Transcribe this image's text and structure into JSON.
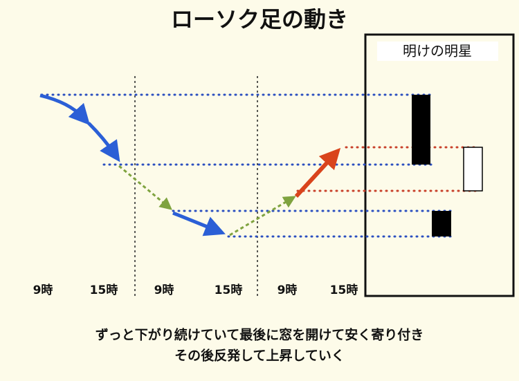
{
  "header": {
    "title": "ローソク足の動き"
  },
  "panel": {
    "label": "明けの明星"
  },
  "time_labels": [
    "9時",
    "15時",
    "9時",
    "15時",
    "9時",
    "15時"
  ],
  "caption": [
    "ずっと下がり続けていて最後に窓を開けて安く寄り付き",
    "その後反発して上昇していく"
  ]
}
